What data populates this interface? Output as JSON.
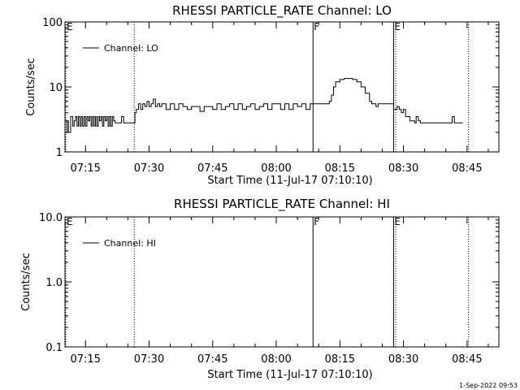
{
  "chart_data": [
    {
      "type": "line",
      "title": "RHESSI  PARTICLE_RATE  Channel: LO",
      "xlabel": "Start Time (11-Jul-17 07:10:10)",
      "ylabel": "Counts/sec",
      "yscale": "log",
      "ylim": [
        1,
        100
      ],
      "xlim": [
        "07:10:10",
        "08:52:30"
      ],
      "y_ticks": [
        1,
        10,
        100
      ],
      "y_tick_labels": [
        "1",
        "10",
        "100"
      ],
      "x_ticks": [
        "07:15",
        "07:30",
        "07:45",
        "08:00",
        "08:15",
        "08:30",
        "08:45"
      ],
      "legend": {
        "placement": "top-left",
        "entries": [
          "Channel: LO"
        ]
      },
      "markers": [
        {
          "label": "E",
          "time": "07:10:10",
          "style": "dotted"
        },
        {
          "label": "",
          "time": "07:26:30",
          "style": "dotted"
        },
        {
          "label": "F",
          "time": "08:08:40",
          "style": "solid"
        },
        {
          "label": "E",
          "time": "08:27:40",
          "style": "solid"
        },
        {
          "label": "",
          "time": "08:28:10",
          "style": "dotted"
        },
        {
          "label": "",
          "time": "08:45:20",
          "style": "dotted"
        }
      ],
      "series": [
        {
          "name": "Channel: LO",
          "x": [
            "07:10:10",
            "07:10:40",
            "07:11:00",
            "07:11:30",
            "07:12:00",
            "07:12:20",
            "07:12:40",
            "07:13:00",
            "07:13:20",
            "07:13:40",
            "07:14:00",
            "07:14:20",
            "07:14:40",
            "07:15:00",
            "07:15:20",
            "07:15:40",
            "07:16:00",
            "07:16:20",
            "07:16:40",
            "07:17:00",
            "07:17:20",
            "07:17:40",
            "07:18:00",
            "07:18:20",
            "07:18:40",
            "07:19:00",
            "07:19:20",
            "07:19:40",
            "07:20:00",
            "07:20:20",
            "07:20:40",
            "07:21:00",
            "07:21:20",
            "07:21:40",
            "07:22:00",
            "07:22:30",
            "07:23:00",
            "07:23:30",
            "07:24:00",
            "07:24:30",
            "07:25:00",
            "07:25:30",
            "07:26:00",
            "07:26:40",
            "07:27:00",
            "07:27:30",
            "07:28:00",
            "07:28:30",
            "07:29:00",
            "07:29:30",
            "07:30:00",
            "07:30:30",
            "07:31:00",
            "07:31:30",
            "07:32:00",
            "07:32:30",
            "07:33:00",
            "07:34:00",
            "07:35:00",
            "07:36:00",
            "07:37:00",
            "07:38:00",
            "07:39:00",
            "07:40:00",
            "07:41:00",
            "07:42:00",
            "07:43:00",
            "07:44:00",
            "07:45:00",
            "07:46:00",
            "07:47:00",
            "07:48:00",
            "07:49:00",
            "07:50:00",
            "07:51:00",
            "07:52:00",
            "07:53:00",
            "07:54:00",
            "07:55:00",
            "07:56:00",
            "07:57:00",
            "07:58:00",
            "07:59:00",
            "08:00:00",
            "08:01:00",
            "08:02:00",
            "08:03:00",
            "08:04:00",
            "08:05:00",
            "08:06:00",
            "08:07:00",
            "08:08:00",
            "08:09:00",
            "08:10:00",
            "08:11:00",
            "08:12:00",
            "08:12:30",
            "08:13:00",
            "08:13:30",
            "08:14:00",
            "08:15:00",
            "08:16:00",
            "08:17:00",
            "08:18:00",
            "08:19:00",
            "08:20:00",
            "08:21:00",
            "08:22:00",
            "08:22:30",
            "08:23:00",
            "08:23:30",
            "08:24:00",
            "08:25:00",
            "08:26:00",
            "08:27:00",
            "08:27:40",
            "08:28:00",
            "08:28:30",
            "08:29:00",
            "08:29:30",
            "08:30:00",
            "08:30:30",
            "08:31:00",
            "08:31:30",
            "08:32:00",
            "08:32:20",
            "08:32:40",
            "08:33:00",
            "08:33:30",
            "08:34:00",
            "08:35:00",
            "08:36:00",
            "08:37:00",
            "08:38:00",
            "08:39:00",
            "08:40:00",
            "08:41:00",
            "08:41:30",
            "08:42:00",
            "08:43:00",
            "08:44:00"
          ],
          "y": [
            2.0,
            3.0,
            2.0,
            3.5,
            2.5,
            3.0,
            3.5,
            2.5,
            3.5,
            2.5,
            3.5,
            2.5,
            3.5,
            2.5,
            3.5,
            3.0,
            3.5,
            2.5,
            3.5,
            2.5,
            3.5,
            2.5,
            3.5,
            3.0,
            3.5,
            2.5,
            3.5,
            3.0,
            3.5,
            2.5,
            3.5,
            2.5,
            3.5,
            3.0,
            2.8,
            2.8,
            2.8,
            3.5,
            2.8,
            2.8,
            2.8,
            2.8,
            2.8,
            4.0,
            4.5,
            5.5,
            4.5,
            5.5,
            5.0,
            6.0,
            5.0,
            5.5,
            6.5,
            5.0,
            5.5,
            5.0,
            5.5,
            4.5,
            5.5,
            4.5,
            5.5,
            5.0,
            4.5,
            5.0,
            5.0,
            4.2,
            5.0,
            5.0,
            4.5,
            5.5,
            4.5,
            5.0,
            5.5,
            4.5,
            5.5,
            4.5,
            5.0,
            5.5,
            4.5,
            5.0,
            5.5,
            4.5,
            5.5,
            5.5,
            4.5,
            5.5,
            4.5,
            5.5,
            5.0,
            5.5,
            4.5,
            5.5,
            5.5,
            5.5,
            5.5,
            5.5,
            6.0,
            7.5,
            10.0,
            12.0,
            13.0,
            13.5,
            13.5,
            13.0,
            12.0,
            10.0,
            8.0,
            6.0,
            5.5,
            5.5,
            5.0,
            5.5,
            5.5,
            5.5,
            5.5,
            4.5,
            4.5,
            5.0,
            4.5,
            4.0,
            4.5,
            3.5,
            3.5,
            3.0,
            3.0,
            3.0,
            2.8,
            3.5,
            3.0,
            2.8,
            2.8,
            2.8,
            2.8,
            2.8,
            2.8,
            2.8,
            2.8,
            3.5,
            2.8,
            2.8,
            2.8
          ]
        }
      ]
    },
    {
      "type": "line",
      "title": "RHESSI  PARTICLE_RATE  Channel: HI",
      "xlabel": "Start Time (11-Jul-17 07:10:10)",
      "ylabel": "Counts/sec",
      "yscale": "log",
      "ylim": [
        0.1,
        10
      ],
      "xlim": [
        "07:10:10",
        "08:52:30"
      ],
      "y_ticks": [
        0.1,
        1,
        10
      ],
      "y_tick_labels": [
        "0.1",
        "1.0",
        "10.0"
      ],
      "x_ticks": [
        "07:15",
        "07:30",
        "07:45",
        "08:00",
        "08:15",
        "08:30",
        "08:45"
      ],
      "legend": {
        "placement": "top-left",
        "entries": [
          "Channel: HI"
        ]
      },
      "markers": [
        {
          "label": "E",
          "time": "07:10:10",
          "style": "dotted"
        },
        {
          "label": "",
          "time": "07:26:30",
          "style": "dotted"
        },
        {
          "label": "F",
          "time": "08:08:40",
          "style": "solid"
        },
        {
          "label": "E",
          "time": "08:27:40",
          "style": "solid"
        },
        {
          "label": "",
          "time": "08:28:10",
          "style": "dotted"
        },
        {
          "label": "",
          "time": "08:45:20",
          "style": "dotted"
        }
      ],
      "series": [
        {
          "name": "Channel: HI",
          "x": [],
          "y": []
        }
      ]
    }
  ],
  "footer": {
    "timestamp": "1-Sep-2022 09:53"
  }
}
